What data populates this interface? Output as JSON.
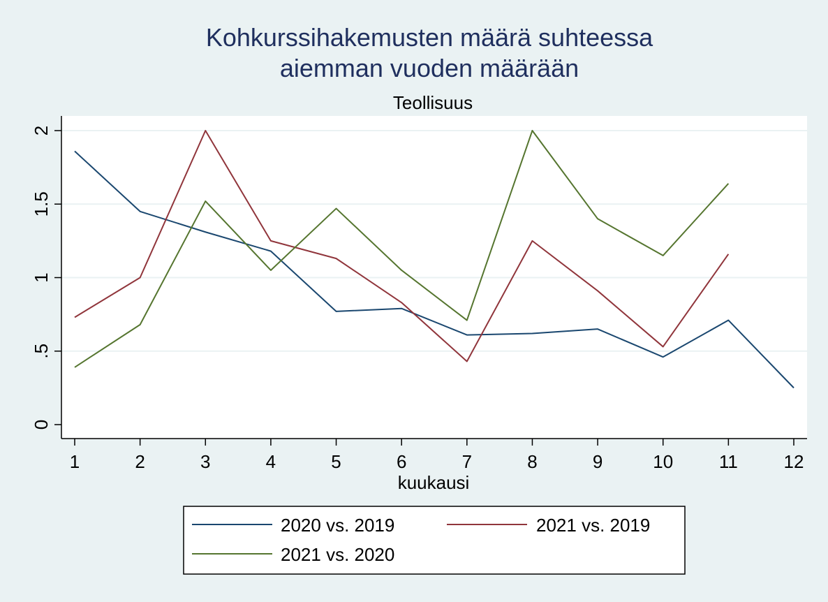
{
  "chart_data": {
    "type": "line",
    "title_lines": [
      "Kohkurssihakemusten määrä suhteessa",
      "aiemman vuoden määrään"
    ],
    "subtitle": "Teollisuus",
    "xlabel": "kuukausi",
    "ylabel": "",
    "x": [
      1,
      2,
      3,
      4,
      5,
      6,
      7,
      8,
      9,
      10,
      11,
      12
    ],
    "x_tick_labels": [
      "1",
      "2",
      "3",
      "4",
      "5",
      "6",
      "7",
      "8",
      "9",
      "10",
      "11",
      "12"
    ],
    "y_ticks": [
      0,
      0.5,
      1,
      1.5,
      2
    ],
    "y_tick_labels": [
      "0",
      ".5",
      "1",
      "1.5",
      "2"
    ],
    "ylim": [
      0,
      2
    ],
    "xlim": [
      1,
      12
    ],
    "grid": "horizontal",
    "legend_position": "bottom",
    "series": [
      {
        "name": "2020 vs. 2019",
        "color": "#1a476f",
        "values": [
          1.86,
          1.45,
          1.31,
          1.18,
          0.77,
          0.79,
          0.61,
          0.62,
          0.65,
          0.46,
          0.71,
          0.25
        ]
      },
      {
        "name": "2021 vs. 2019",
        "color": "#90353b",
        "values": [
          0.73,
          1.0,
          2.0,
          1.25,
          1.13,
          0.83,
          0.43,
          1.25,
          0.91,
          0.53,
          1.16,
          null
        ]
      },
      {
        "name": "2021 vs. 2020",
        "color": "#55752f",
        "values": [
          0.39,
          0.68,
          1.52,
          1.05,
          1.47,
          1.05,
          0.71,
          2.0,
          1.4,
          1.15,
          1.64,
          null
        ]
      }
    ]
  }
}
